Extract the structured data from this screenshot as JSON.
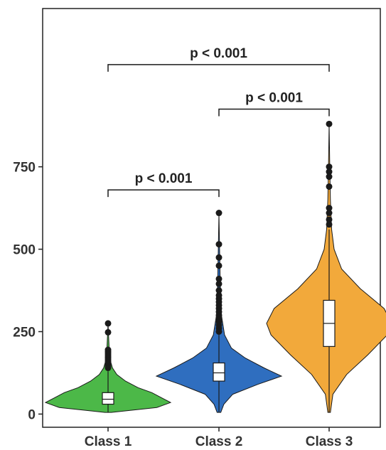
{
  "chart_data": {
    "type": "violin",
    "title": "",
    "xlabel": "",
    "ylabel": "",
    "ylim": [
      -40,
      1230
    ],
    "yticks": [
      0,
      250,
      500,
      750
    ],
    "ytick_labels": [
      "0",
      "250",
      "500",
      "750"
    ],
    "categories": [
      "Class 1",
      "Class 2",
      "Class 3"
    ],
    "groups": [
      {
        "name": "Class 1",
        "color": "#4cb848",
        "min": 5,
        "q1": 30,
        "median": 45,
        "q3": 65,
        "max": 130,
        "outliers": [
          140,
          145,
          150,
          155,
          160,
          165,
          170,
          175,
          180,
          185,
          190,
          195,
          248,
          275
        ],
        "density": [
          [
            5,
            0.05
          ],
          [
            20,
            0.78
          ],
          [
            35,
            1.0
          ],
          [
            50,
            0.85
          ],
          [
            65,
            0.7
          ],
          [
            80,
            0.48
          ],
          [
            100,
            0.28
          ],
          [
            120,
            0.14
          ],
          [
            140,
            0.07
          ],
          [
            160,
            0.04
          ],
          [
            190,
            0.02
          ],
          [
            230,
            0.01
          ],
          [
            275,
            0.0
          ]
        ]
      },
      {
        "name": "Class 2",
        "color": "#2f6ebf",
        "min": 5,
        "q1": 100,
        "median": 125,
        "q3": 155,
        "max": 240,
        "outliers": [
          250,
          260,
          270,
          280,
          290,
          300,
          310,
          320,
          330,
          340,
          350,
          360,
          375,
          395,
          410,
          450,
          475,
          515,
          610
        ],
        "density": [
          [
            5,
            0.03
          ],
          [
            30,
            0.08
          ],
          [
            60,
            0.22
          ],
          [
            90,
            0.62
          ],
          [
            115,
            1.0
          ],
          [
            140,
            0.72
          ],
          [
            170,
            0.42
          ],
          [
            200,
            0.2
          ],
          [
            240,
            0.09
          ],
          [
            300,
            0.04
          ],
          [
            400,
            0.02
          ],
          [
            500,
            0.01
          ],
          [
            610,
            0.0
          ]
        ]
      },
      {
        "name": "Class 3",
        "color": "#f2a93b",
        "min": 5,
        "q1": 205,
        "median": 275,
        "q3": 345,
        "max": 560,
        "outliers": [
          575,
          590,
          610,
          625,
          690,
          720,
          735,
          750,
          880
        ],
        "density": [
          [
            5,
            0.02
          ],
          [
            60,
            0.06
          ],
          [
            120,
            0.28
          ],
          [
            180,
            0.62
          ],
          [
            240,
            0.93
          ],
          [
            275,
            1.0
          ],
          [
            320,
            0.88
          ],
          [
            380,
            0.5
          ],
          [
            440,
            0.2
          ],
          [
            500,
            0.08
          ],
          [
            560,
            0.04
          ],
          [
            650,
            0.02
          ],
          [
            750,
            0.01
          ],
          [
            880,
            0.0
          ]
        ]
      }
    ],
    "significance": [
      {
        "from": "Class 1",
        "to": "Class 2",
        "y": 680,
        "label": "p < 0.001"
      },
      {
        "from": "Class 2",
        "to": "Class 3",
        "y": 925,
        "label": "p < 0.001"
      },
      {
        "from": "Class 1",
        "to": "Class 3",
        "y": 1060,
        "label": "p < 0.001"
      }
    ],
    "legend": "none",
    "grid": false
  }
}
